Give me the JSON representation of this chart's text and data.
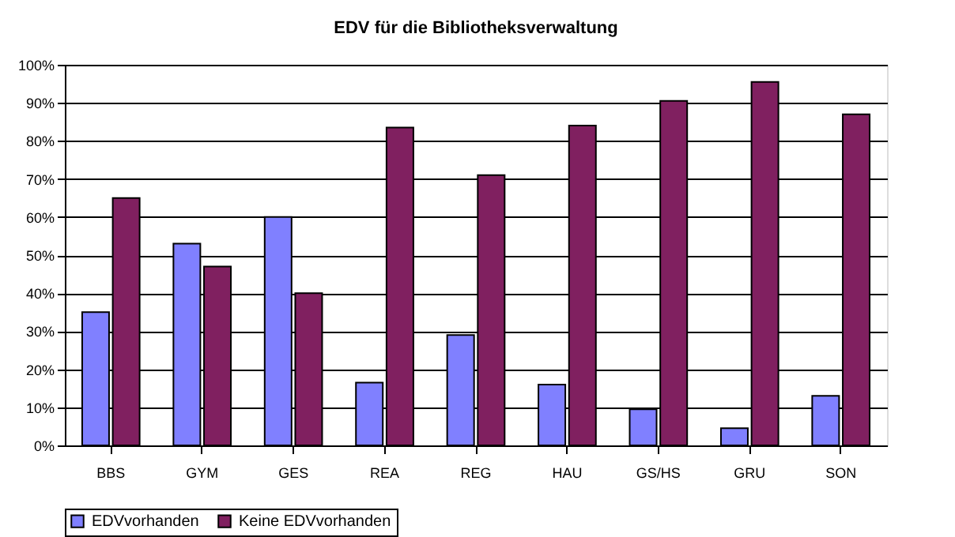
{
  "chart_data": {
    "type": "bar",
    "title": "EDV für die Bibliotheksverwaltung",
    "categories": [
      "BBS",
      "GYM",
      "GES",
      "REA",
      "REG",
      "HAU",
      "GS/HS",
      "GRU",
      "SON"
    ],
    "series": [
      {
        "name": "EDVvorhanden",
        "color": "#8080ff",
        "values": [
          35,
          53,
          60,
          16.5,
          29,
          16,
          9.5,
          4.5,
          13
        ]
      },
      {
        "name": "Keine EDVvorhanden",
        "color": "#802060",
        "values": [
          65,
          47,
          40,
          83.5,
          71,
          84,
          90.5,
          95.5,
          87
        ]
      }
    ],
    "ylim": [
      0,
      100
    ],
    "yticks": [
      {
        "value": 0,
        "label": "0%"
      },
      {
        "value": 10,
        "label": "10%"
      },
      {
        "value": 20,
        "label": "20%"
      },
      {
        "value": 30,
        "label": "30%"
      },
      {
        "value": 40,
        "label": "40%"
      },
      {
        "value": 50,
        "label": "50%"
      },
      {
        "value": 60,
        "label": "60%"
      },
      {
        "value": 70,
        "label": "70%"
      },
      {
        "value": 80,
        "label": "80%"
      },
      {
        "value": 90,
        "label": "90%"
      },
      {
        "value": 100,
        "label": "100%"
      }
    ],
    "grid": "y",
    "legend": "bottom"
  }
}
